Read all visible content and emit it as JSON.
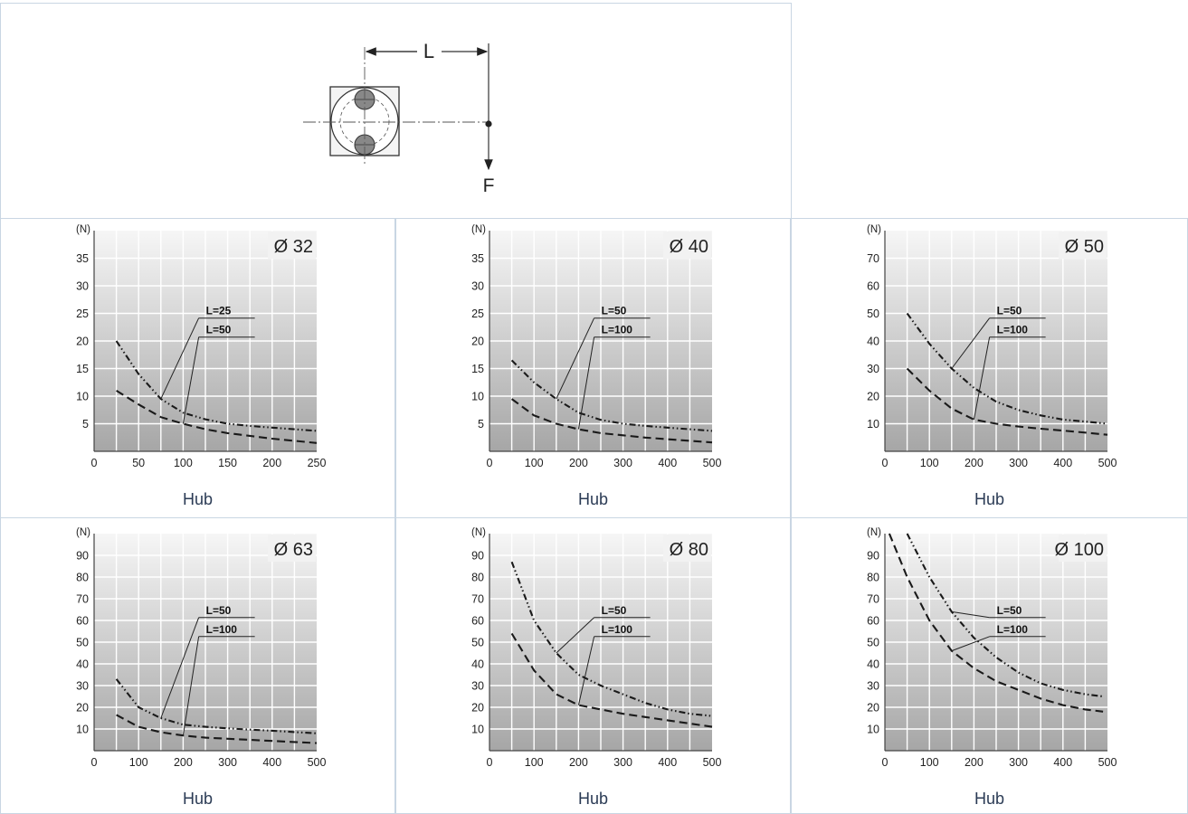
{
  "diagram": {
    "dimension_label": "L",
    "force_label": "F"
  },
  "chart_data": [
    {
      "type": "line",
      "title": "Ø 32",
      "xlabel": "Hub",
      "ylabel": "(N)",
      "xlim": [
        0,
        250
      ],
      "ylim": [
        0,
        40
      ],
      "xticks": [
        0,
        50,
        100,
        150,
        200,
        250
      ],
      "yticks": [
        5,
        10,
        15,
        20,
        25,
        30,
        35
      ],
      "series": [
        {
          "name": "L=25",
          "style": "dash-dot",
          "x": [
            25,
            50,
            75,
            100,
            125,
            150,
            175,
            200,
            225,
            250
          ],
          "y": [
            20,
            14,
            9.5,
            7,
            5.8,
            5,
            4.6,
            4.3,
            4,
            3.7
          ]
        },
        {
          "name": "L=50",
          "style": "dashed",
          "x": [
            25,
            50,
            75,
            100,
            125,
            150,
            175,
            200,
            225,
            250
          ],
          "y": [
            11,
            8.5,
            6.2,
            5,
            4,
            3.3,
            2.8,
            2.3,
            1.9,
            1.5
          ]
        }
      ],
      "grid": true
    },
    {
      "type": "line",
      "title": "Ø 40",
      "xlabel": "Hub",
      "ylabel": "(N)",
      "xlim": [
        0,
        500
      ],
      "ylim": [
        0,
        40
      ],
      "xticks": [
        0,
        100,
        200,
        300,
        400,
        500
      ],
      "yticks": [
        5,
        10,
        15,
        20,
        25,
        30,
        35
      ],
      "series": [
        {
          "name": "L=50",
          "style": "dash-dot",
          "x": [
            50,
            100,
            150,
            200,
            250,
            300,
            350,
            400,
            450,
            500
          ],
          "y": [
            16.5,
            12.5,
            9.5,
            7,
            5.7,
            5,
            4.6,
            4.3,
            4,
            3.7
          ]
        },
        {
          "name": "L=100",
          "style": "dashed",
          "x": [
            50,
            100,
            150,
            200,
            250,
            300,
            350,
            400,
            450,
            500
          ],
          "y": [
            9.5,
            6.5,
            5,
            4,
            3.3,
            2.9,
            2.5,
            2.2,
            1.9,
            1.6
          ]
        }
      ],
      "grid": true
    },
    {
      "type": "line",
      "title": "Ø 50",
      "xlabel": "Hub",
      "ylabel": "(N)",
      "xlim": [
        0,
        500
      ],
      "ylim": [
        0,
        80
      ],
      "xticks": [
        0,
        100,
        200,
        300,
        400,
        500
      ],
      "yticks": [
        10,
        20,
        30,
        40,
        50,
        60,
        70
      ],
      "series": [
        {
          "name": "L=50",
          "style": "dash-dot",
          "x": [
            50,
            100,
            150,
            200,
            250,
            300,
            350,
            400,
            450,
            500
          ],
          "y": [
            50,
            39,
            30,
            23,
            18,
            15,
            13,
            11.5,
            10.8,
            10
          ]
        },
        {
          "name": "L=100",
          "style": "dashed",
          "x": [
            50,
            100,
            150,
            200,
            250,
            300,
            350,
            400,
            450,
            500
          ],
          "y": [
            30,
            22,
            15.5,
            11.5,
            10,
            9,
            8.2,
            7.5,
            6.8,
            6
          ]
        }
      ],
      "grid": true
    },
    {
      "type": "line",
      "title": "Ø 63",
      "xlabel": "Hub",
      "ylabel": "(N)",
      "xlim": [
        0,
        500
      ],
      "ylim": [
        0,
        100
      ],
      "xticks": [
        0,
        100,
        200,
        300,
        400,
        500
      ],
      "yticks": [
        10,
        20,
        30,
        40,
        50,
        60,
        70,
        80,
        90
      ],
      "series": [
        {
          "name": "L=50",
          "style": "dash-dot",
          "x": [
            50,
            100,
            150,
            200,
            250,
            300,
            350,
            400,
            450,
            500
          ],
          "y": [
            33,
            20,
            15,
            12,
            11,
            10.3,
            9.7,
            9.2,
            8.6,
            8
          ]
        },
        {
          "name": "L=100",
          "style": "dashed",
          "x": [
            50,
            100,
            150,
            200,
            250,
            300,
            350,
            400,
            450,
            500
          ],
          "y": [
            16.5,
            11,
            8.5,
            7,
            6,
            5.5,
            5,
            4.5,
            4,
            3.5
          ]
        }
      ],
      "grid": true
    },
    {
      "type": "line",
      "title": "Ø 80",
      "xlabel": "Hub",
      "ylabel": "(N)",
      "xlim": [
        0,
        500
      ],
      "ylim": [
        0,
        100
      ],
      "xticks": [
        0,
        100,
        200,
        300,
        400,
        500
      ],
      "yticks": [
        10,
        20,
        30,
        40,
        50,
        60,
        70,
        80,
        90
      ],
      "series": [
        {
          "name": "L=50",
          "style": "dash-dot",
          "x": [
            50,
            100,
            150,
            200,
            250,
            300,
            350,
            400,
            450,
            500
          ],
          "y": [
            87,
            60,
            45,
            35,
            30,
            26,
            22,
            19,
            17,
            16
          ]
        },
        {
          "name": "L=100",
          "style": "dashed",
          "x": [
            50,
            100,
            150,
            200,
            250,
            300,
            350,
            400,
            450,
            500
          ],
          "y": [
            54,
            37,
            26,
            21,
            19,
            17,
            15.5,
            14,
            12.5,
            11
          ]
        }
      ],
      "grid": true
    },
    {
      "type": "line",
      "title": "Ø 100",
      "xlabel": "Hub",
      "ylabel": "(N)",
      "xlim": [
        0,
        500
      ],
      "ylim": [
        0,
        100
      ],
      "xticks": [
        0,
        100,
        200,
        300,
        400,
        500
      ],
      "yticks": [
        10,
        20,
        30,
        40,
        50,
        60,
        70,
        80,
        90
      ],
      "series": [
        {
          "name": "L=50",
          "style": "dash-dot",
          "x": [
            50,
            100,
            150,
            200,
            250,
            300,
            350,
            400,
            450,
            490
          ],
          "y": [
            100,
            80,
            64,
            52,
            43,
            36,
            31,
            28,
            26,
            25
          ]
        },
        {
          "name": "L=100",
          "style": "dashed",
          "x": [
            10,
            50,
            100,
            150,
            200,
            250,
            300,
            350,
            400,
            450,
            490
          ],
          "y": [
            100,
            80,
            60,
            46,
            38,
            32,
            28,
            24,
            21,
            19,
            18
          ]
        }
      ],
      "grid": true
    }
  ]
}
